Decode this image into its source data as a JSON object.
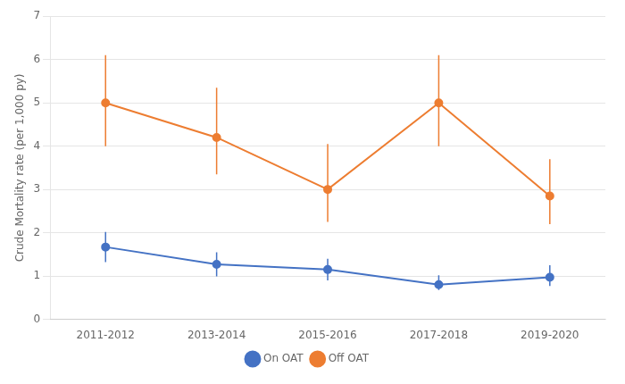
{
  "chart_data": {
    "type": "line",
    "y_label": "Crude Mortality rate (per 1,000 py)",
    "categories": [
      "2011-2012",
      "2013-2014",
      "2015-2016",
      "2017-2018",
      "2019-2020"
    ],
    "series": [
      {
        "name": "On OAT",
        "color": "#4472C4",
        "marker": "circle",
        "values": [
          1.67,
          1.27,
          1.15,
          0.8,
          0.97
        ],
        "error_upper": [
          0.35,
          0.28,
          0.25,
          0.22,
          0.28
        ],
        "error_lower": [
          0.35,
          0.28,
          0.25,
          0.12,
          0.2
        ]
      },
      {
        "name": "Off OAT",
        "color": "#ED7D31",
        "marker": "circle",
        "values": [
          5.0,
          4.2,
          3.0,
          5.0,
          2.85
        ],
        "error_upper": [
          1.1,
          1.15,
          1.05,
          1.1,
          0.85
        ],
        "error_lower": [
          1.0,
          0.85,
          0.75,
          1.0,
          0.65
        ]
      }
    ],
    "ylim": [
      0,
      7
    ],
    "yticks": [
      0,
      1,
      2,
      3,
      4,
      5,
      6,
      7
    ],
    "grid": true,
    "legend": "bottom"
  }
}
